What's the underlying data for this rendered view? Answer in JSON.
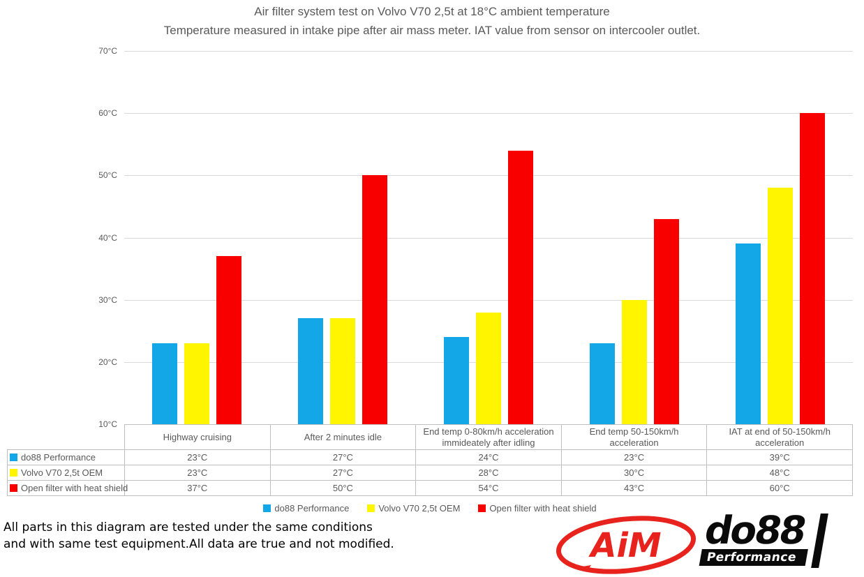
{
  "title": "Air filter system test on Volvo V70 2,5t at 18°C ambient temperature",
  "subtitle": "Temperature measured in intake pipe after air mass meter. IAT value from sensor on intercooler outlet.",
  "footer": {
    "line1": "All parts in this diagram are tested under the same conditions",
    "line2": "and with same test equipment.All data are true and not modified."
  },
  "logos": {
    "aim_text": "AiM",
    "do88_text": "do88",
    "do88_sub": "Performance"
  },
  "colors": {
    "series_blue": "#14a7e8",
    "series_yellow": "#fff500",
    "series_red": "#f80000",
    "axis_text": "#595959",
    "gridline": "#d9d9d9",
    "table_border": "#bfbfbf",
    "logo_red": "#e8231d",
    "logo_black": "#0a0a0a"
  },
  "chart_data": {
    "type": "bar",
    "title": "Air filter system test on Volvo V70 2,5t at 18°C ambient temperature",
    "subtitle": "Temperature measured in intake pipe after air mass meter. IAT value from sensor on intercooler outlet.",
    "categories": [
      "Highway cruising",
      "After 2 minutes idle",
      "End temp 0-80km/h acceleration immideately after idling",
      "End temp 50-150km/h acceleration",
      "IAT at end of 50-150km/h acceleration"
    ],
    "series": [
      {
        "name": "do88 Performance",
        "color_key": "series_blue",
        "values": [
          23,
          27,
          24,
          23,
          39
        ]
      },
      {
        "name": "Volvo V70 2,5t OEM",
        "color_key": "series_yellow",
        "values": [
          23,
          27,
          28,
          30,
          48
        ]
      },
      {
        "name": "Open filter with heat shield",
        "color_key": "series_red",
        "values": [
          37,
          50,
          54,
          43,
          60
        ]
      }
    ],
    "ylim": [
      10,
      70
    ],
    "ytick_step": 10,
    "ytick_suffix": "°C",
    "value_suffix": "°C",
    "grid": true,
    "legend_position": "bottom",
    "data_table_shown": true
  }
}
